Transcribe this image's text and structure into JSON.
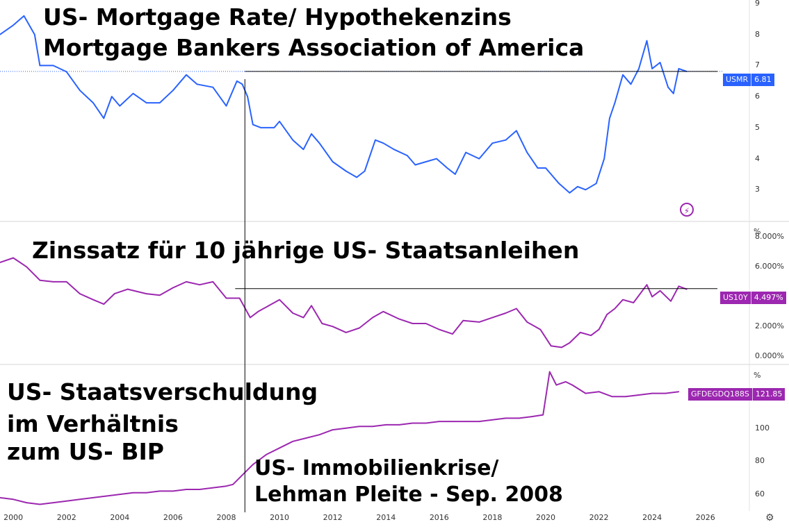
{
  "annotations": {
    "mortgage_title_1": "US- Mortgage Rate/ Hypothekenzins",
    "mortgage_title_2": "Mortgage Bankers Association of America",
    "treasury_title": "Zinssatz für 10 jährige US- Staatsanleihen",
    "debt_title_1": "US- Staatsverschuldung",
    "debt_title_2": "im Verhältnis",
    "debt_title_3": "zum US- BIP",
    "crisis_1": "US- Immobilienkrise/",
    "crisis_2": "Lehman Pleite - Sep. 2008"
  },
  "colors": {
    "mortgage": "#2962ff",
    "treasury": "#9c27b0",
    "debt": "#9c27b0"
  },
  "icons": [
    "flash-icon",
    "settings-icon"
  ],
  "chart_data": [
    {
      "type": "line",
      "series": [
        {
          "symbol": "USMR",
          "last_value": "6.81",
          "x": [
            1999.5,
            2000.0,
            2000.4,
            2000.8,
            2001.0,
            2001.5,
            2002.0,
            2002.5,
            2003.0,
            2003.4,
            2003.7,
            2004.0,
            2004.5,
            2005.0,
            2005.5,
            2006.0,
            2006.5,
            2006.9,
            2007.5,
            2008.0,
            2008.4,
            2008.6,
            2008.8,
            2009.0,
            2009.3,
            2009.8,
            2010.0,
            2010.5,
            2010.9,
            2011.2,
            2011.5,
            2012.0,
            2012.5,
            2012.9,
            2013.2,
            2013.6,
            2013.9,
            2014.3,
            2014.8,
            2015.1,
            2015.5,
            2015.9,
            2016.3,
            2016.6,
            2017.0,
            2017.5,
            2018.0,
            2018.5,
            2018.9,
            2019.3,
            2019.7,
            2020.0,
            2020.5,
            2020.9,
            2021.2,
            2021.5,
            2021.9,
            2022.2,
            2022.4,
            2022.6,
            2022.9,
            2023.2,
            2023.5,
            2023.8,
            2024.0,
            2024.3,
            2024.6,
            2024.8,
            2025.0,
            2025.3
          ],
          "y": [
            8.0,
            8.3,
            8.6,
            8.0,
            7.0,
            7.0,
            6.8,
            6.2,
            5.8,
            5.3,
            6.0,
            5.7,
            6.1,
            5.8,
            5.8,
            6.2,
            6.7,
            6.4,
            6.3,
            5.7,
            6.5,
            6.4,
            6.0,
            5.1,
            5.0,
            5.0,
            5.2,
            4.6,
            4.3,
            4.8,
            4.5,
            3.9,
            3.6,
            3.4,
            3.6,
            4.6,
            4.5,
            4.3,
            4.1,
            3.8,
            3.9,
            4.0,
            3.7,
            3.5,
            4.2,
            4.0,
            4.5,
            4.6,
            4.9,
            4.2,
            3.7,
            3.7,
            3.2,
            2.9,
            3.1,
            3.0,
            3.2,
            4.0,
            5.3,
            5.8,
            6.7,
            6.4,
            6.9,
            7.8,
            6.9,
            7.1,
            6.3,
            6.1,
            6.9,
            6.81
          ]
        }
      ],
      "ylim": [
        2.0,
        9.0
      ],
      "y_ticks": [
        "9",
        "8",
        "7",
        "6",
        "5",
        "4",
        "3"
      ]
    },
    {
      "type": "line",
      "y_unit": "%",
      "series": [
        {
          "symbol": "US10Y",
          "last_value": "4.497%",
          "x": [
            1999.5,
            2000.0,
            2000.5,
            2001.0,
            2001.5,
            2002.0,
            2002.5,
            2003.0,
            2003.4,
            2003.8,
            2004.3,
            2005.0,
            2005.5,
            2006.0,
            2006.5,
            2007.0,
            2007.5,
            2008.0,
            2008.5,
            2008.9,
            2009.2,
            2009.6,
            2010.0,
            2010.5,
            2010.9,
            2011.2,
            2011.6,
            2012.0,
            2012.5,
            2013.0,
            2013.5,
            2013.9,
            2014.5,
            2015.0,
            2015.5,
            2016.0,
            2016.5,
            2016.9,
            2017.5,
            2018.0,
            2018.5,
            2018.9,
            2019.3,
            2019.8,
            2020.2,
            2020.6,
            2020.9,
            2021.3,
            2021.7,
            2022.0,
            2022.3,
            2022.6,
            2022.9,
            2023.3,
            2023.8,
            2024.0,
            2024.3,
            2024.7,
            2025.0,
            2025.3
          ],
          "y": [
            6.3,
            6.6,
            6.0,
            5.1,
            5.0,
            5.0,
            4.2,
            3.8,
            3.5,
            4.2,
            4.5,
            4.2,
            4.1,
            4.6,
            5.0,
            4.8,
            5.0,
            3.9,
            3.9,
            2.6,
            3.0,
            3.4,
            3.8,
            2.9,
            2.6,
            3.4,
            2.2,
            2.0,
            1.6,
            1.9,
            2.6,
            3.0,
            2.5,
            2.2,
            2.2,
            1.8,
            1.5,
            2.4,
            2.3,
            2.6,
            2.9,
            3.2,
            2.3,
            1.8,
            0.7,
            0.6,
            0.9,
            1.6,
            1.4,
            1.8,
            2.8,
            3.2,
            3.8,
            3.6,
            4.8,
            4.0,
            4.4,
            3.7,
            4.7,
            4.497
          ]
        }
      ],
      "ylim": [
        -0.5,
        9.0
      ],
      "y_ticks": [
        "8.000%",
        "6.000%",
        "4.000%",
        "2.000%",
        "0.000%"
      ]
    },
    {
      "type": "line",
      "y_unit": "%",
      "series": [
        {
          "symbol": "GFDEGDQ188S",
          "last_value": "121.85",
          "x": [
            1999.5,
            2000.0,
            2000.5,
            2001.0,
            2001.5,
            2002.0,
            2002.5,
            2003.0,
            2003.5,
            2004.0,
            2004.5,
            2005.0,
            2005.5,
            2006.0,
            2006.5,
            2007.0,
            2007.5,
            2008.0,
            2008.25,
            2008.5,
            2008.75,
            2009.0,
            2009.5,
            2010.0,
            2010.5,
            2011.0,
            2011.5,
            2012.0,
            2012.5,
            2013.0,
            2013.5,
            2014.0,
            2014.5,
            2015.0,
            2015.5,
            2016.0,
            2016.5,
            2017.0,
            2017.5,
            2018.0,
            2018.5,
            2019.0,
            2019.5,
            2019.9,
            2020.15,
            2020.4,
            2020.75,
            2021.0,
            2021.5,
            2022.0,
            2022.5,
            2023.0,
            2023.5,
            2024.0,
            2024.5,
            2025.0
          ],
          "y": [
            58,
            57,
            55,
            54,
            55,
            56,
            57,
            58,
            59,
            60,
            61,
            61,
            62,
            62,
            63,
            63,
            64,
            65,
            66,
            70,
            74,
            78,
            84,
            88,
            92,
            94,
            96,
            99,
            100,
            101,
            101,
            102,
            102,
            103,
            103,
            104,
            104,
            104,
            104,
            105,
            106,
            106,
            107,
            108,
            134,
            126,
            128,
            126,
            121,
            122,
            119,
            119,
            120,
            121,
            121,
            122
          ]
        }
      ],
      "ylim": [
        50,
        138
      ],
      "y_ticks": [
        "100",
        "80",
        "60"
      ]
    }
  ],
  "x_axis": {
    "range": [
      1999.5,
      2027.6
    ],
    "tick_labels": [
      "2000",
      "2002",
      "2004",
      "2006",
      "2008",
      "2010",
      "2012",
      "2014",
      "2016",
      "2018",
      "2020",
      "2022",
      "2024",
      "2026"
    ]
  },
  "markers": {
    "vertical_event_x": 2008.7
  }
}
